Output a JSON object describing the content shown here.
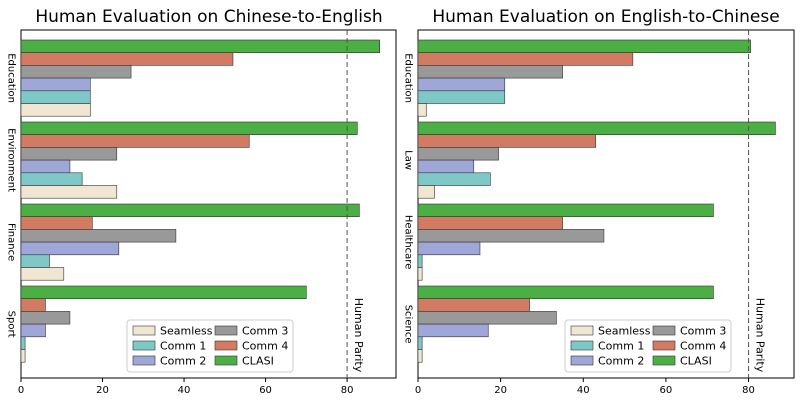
{
  "figure": {
    "legend": {
      "entries": [
        "Seamless",
        "Comm 1",
        "Comm 2",
        "Comm 3",
        "Comm 4",
        "CLASI"
      ]
    },
    "reference_line_label": "Human Parity"
  },
  "chart_data": [
    {
      "type": "bar",
      "orientation": "horizontal",
      "title": "Human Evaluation on Chinese-to-English",
      "xlabel": "",
      "ylabel": "",
      "xlim": [
        0,
        92
      ],
      "xticks": [
        0,
        20,
        40,
        60,
        80
      ],
      "grid": false,
      "legend_position": "lower-right",
      "reference_line": {
        "x": 80,
        "label": "Human Parity",
        "style": "dashed"
      },
      "categories": [
        "Education",
        "Environment",
        "Finance",
        "Sport"
      ],
      "series": [
        {
          "name": "Seamless",
          "color": "#f0e6d2",
          "values": [
            17,
            23.5,
            10.5,
            1
          ]
        },
        {
          "name": "Comm 1",
          "color": "#7ec8c8",
          "values": [
            17,
            15,
            7,
            1
          ]
        },
        {
          "name": "Comm 2",
          "color": "#9fa6d8",
          "values": [
            17,
            12,
            24,
            6
          ]
        },
        {
          "name": "Comm 3",
          "color": "#999999",
          "values": [
            27,
            23.5,
            38,
            12
          ]
        },
        {
          "name": "Comm 4",
          "color": "#d27a62",
          "values": [
            52,
            56,
            17.5,
            6
          ]
        },
        {
          "name": "CLASI",
          "color": "#4caf45",
          "values": [
            88,
            82.5,
            83,
            70
          ]
        }
      ]
    },
    {
      "type": "bar",
      "orientation": "horizontal",
      "title": "Human Evaluation on English-to-Chinese",
      "xlabel": "",
      "ylabel": "",
      "xlim": [
        0,
        91
      ],
      "xticks": [
        0,
        20,
        40,
        60,
        80
      ],
      "grid": false,
      "legend_position": "lower-right",
      "reference_line": {
        "x": 80,
        "label": "Human Parity",
        "style": "dashed"
      },
      "categories": [
        "Education",
        "Law",
        "Healthcare",
        "Science"
      ],
      "series": [
        {
          "name": "Seamless",
          "color": "#f0e6d2",
          "values": [
            2,
            4,
            1,
            1
          ]
        },
        {
          "name": "Comm 1",
          "color": "#7ec8c8",
          "values": [
            21,
            17.5,
            1,
            1
          ]
        },
        {
          "name": "Comm 2",
          "color": "#9fa6d8",
          "values": [
            21,
            13.5,
            15,
            17
          ]
        },
        {
          "name": "Comm 3",
          "color": "#999999",
          "values": [
            35,
            19.5,
            45,
            33.5
          ]
        },
        {
          "name": "Comm 4",
          "color": "#d27a62",
          "values": [
            52,
            43,
            35,
            27
          ]
        },
        {
          "name": "CLASI",
          "color": "#4caf45",
          "values": [
            80.5,
            86.5,
            71.5,
            71.5
          ]
        }
      ]
    }
  ]
}
